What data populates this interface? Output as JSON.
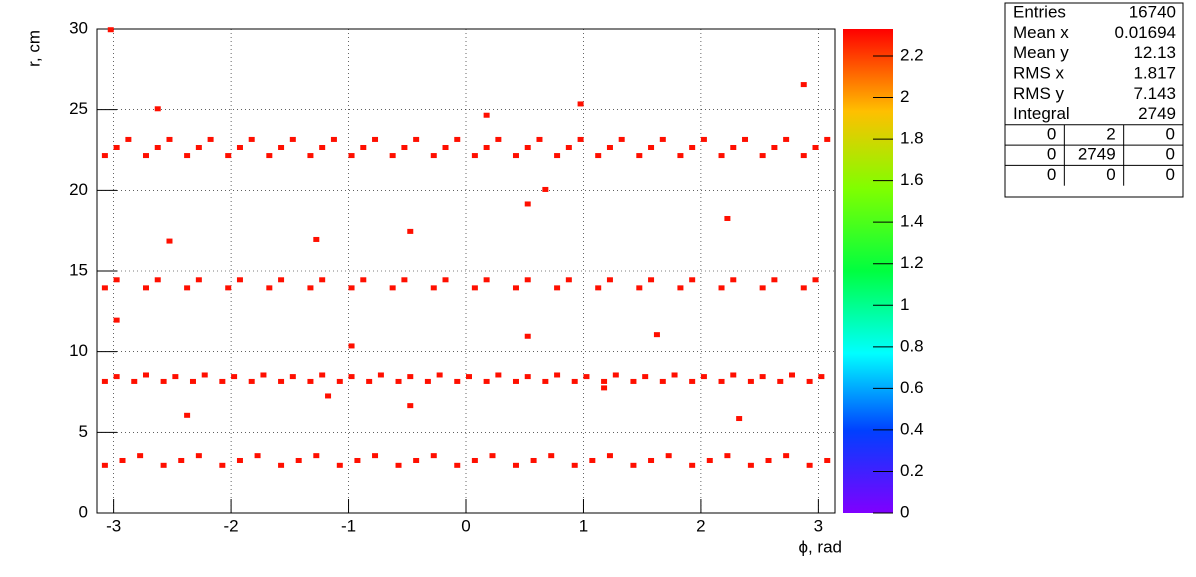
{
  "chart_data": {
    "type": "heatmap",
    "x_label": "ϕ, rad",
    "y_label": "r, cm",
    "xlim": [
      -3.1416,
      3.1416
    ],
    "ylim": [
      0,
      30
    ],
    "zlim": [
      0,
      2.33
    ],
    "xticks": [
      -3,
      -2,
      -1,
      0,
      1,
      2,
      3
    ],
    "yticks": [
      0,
      5,
      10,
      15,
      20,
      25,
      30
    ],
    "zticks": [
      0,
      0.2,
      0.4,
      0.6,
      0.8,
      1,
      1.2,
      1.4,
      1.6,
      1.8,
      2,
      2.2
    ],
    "grid": true,
    "x": [
      -3.1,
      -3.0,
      -2.9,
      -2.75,
      -2.65,
      -2.55,
      -2.4,
      -2.3,
      -2.2,
      -2.05,
      -1.95,
      -1.85,
      -1.7,
      -1.6,
      -1.5,
      -1.35,
      -1.25,
      -1.15,
      -1.0,
      -0.9,
      -0.8,
      -0.65,
      -0.55,
      -0.45,
      -0.3,
      -0.2,
      -0.1,
      0.05,
      0.15,
      0.25,
      0.4,
      0.5,
      0.6,
      0.75,
      0.85,
      0.95,
      1.1,
      1.2,
      1.3,
      1.45,
      1.55,
      1.65,
      1.8,
      1.9,
      2.0,
      2.15,
      2.25,
      2.35,
      2.5,
      2.6,
      2.7,
      2.85,
      2.95,
      3.05,
      -3.1,
      -3.0,
      -2.75,
      -2.65,
      -2.4,
      -2.3,
      -2.05,
      -1.95,
      -1.7,
      -1.6,
      -1.35,
      -1.25,
      -1.0,
      -0.9,
      -0.65,
      -0.55,
      -0.3,
      -0.2,
      0.05,
      0.15,
      0.4,
      0.5,
      0.75,
      0.85,
      1.1,
      1.2,
      1.45,
      1.55,
      1.8,
      1.9,
      2.15,
      2.25,
      2.5,
      2.6,
      2.85,
      2.95,
      -3.1,
      -3.0,
      -2.85,
      -2.75,
      -2.6,
      -2.5,
      -2.35,
      -2.25,
      -2.1,
      -2.0,
      -1.85,
      -1.75,
      -1.6,
      -1.5,
      -1.35,
      -1.25,
      -1.1,
      -1.0,
      -0.85,
      -0.75,
      -0.6,
      -0.5,
      -0.35,
      -0.25,
      -0.1,
      0.0,
      0.15,
      0.25,
      0.4,
      0.5,
      0.65,
      0.75,
      0.9,
      1.0,
      1.15,
      1.25,
      1.4,
      1.5,
      1.65,
      1.75,
      1.9,
      2.0,
      2.15,
      2.25,
      2.4,
      2.5,
      2.65,
      2.75,
      2.9,
      3.0,
      -3.1,
      -2.95,
      -2.8,
      -2.6,
      -2.45,
      -2.3,
      -2.1,
      -1.95,
      -1.8,
      -1.6,
      -1.45,
      -1.3,
      -1.1,
      -0.95,
      -0.8,
      -0.6,
      -0.45,
      -0.3,
      -0.1,
      0.05,
      0.2,
      0.4,
      0.55,
      0.7,
      0.9,
      1.05,
      1.2,
      1.4,
      1.55,
      1.7,
      1.9,
      2.05,
      2.2,
      2.4,
      2.55,
      2.7,
      2.9,
      3.05,
      -3.05,
      -2.65,
      -2.55,
      -1.3,
      0.5,
      0.65,
      2.2,
      -0.5,
      2.85,
      0.95,
      -3.0,
      -1.0,
      0.5,
      1.6,
      -2.4,
      -0.5,
      2.3,
      -1.2,
      0.15,
      1.15
    ],
    "y": [
      22.0,
      22.5,
      23.0,
      22.0,
      22.5,
      23.0,
      22.0,
      22.5,
      23.0,
      22.0,
      22.5,
      23.0,
      22.0,
      22.5,
      23.0,
      22.0,
      22.5,
      23.0,
      22.0,
      22.5,
      23.0,
      22.0,
      22.5,
      23.0,
      22.0,
      22.5,
      23.0,
      22.0,
      22.5,
      23.0,
      22.0,
      22.5,
      23.0,
      22.0,
      22.5,
      23.0,
      22.0,
      22.5,
      23.0,
      22.0,
      22.5,
      23.0,
      22.0,
      22.5,
      23.0,
      22.0,
      22.5,
      23.0,
      22.0,
      22.5,
      23.0,
      22.0,
      22.5,
      23.0,
      13.8,
      14.3,
      13.8,
      14.3,
      13.8,
      14.3,
      13.8,
      14.3,
      13.8,
      14.3,
      13.8,
      14.3,
      13.8,
      14.3,
      13.8,
      14.3,
      13.8,
      14.3,
      13.8,
      14.3,
      13.8,
      14.3,
      13.8,
      14.3,
      13.8,
      14.3,
      13.8,
      14.3,
      13.8,
      14.3,
      13.8,
      14.3,
      13.8,
      14.3,
      13.8,
      14.3,
      8.0,
      8.3,
      8.0,
      8.4,
      8.0,
      8.3,
      8.0,
      8.4,
      8.0,
      8.3,
      8.0,
      8.4,
      8.0,
      8.3,
      8.0,
      8.4,
      8.0,
      8.3,
      8.0,
      8.4,
      8.0,
      8.3,
      8.0,
      8.4,
      8.0,
      8.3,
      8.0,
      8.4,
      8.0,
      8.3,
      8.0,
      8.4,
      8.0,
      8.3,
      8.0,
      8.4,
      8.0,
      8.3,
      8.0,
      8.4,
      8.0,
      8.3,
      8.0,
      8.4,
      8.0,
      8.3,
      8.0,
      8.4,
      8.0,
      8.3,
      2.8,
      3.1,
      3.4,
      2.8,
      3.1,
      3.4,
      2.8,
      3.1,
      3.4,
      2.8,
      3.1,
      3.4,
      2.8,
      3.1,
      3.4,
      2.8,
      3.1,
      3.4,
      2.8,
      3.1,
      3.4,
      2.8,
      3.1,
      3.4,
      2.8,
      3.1,
      3.4,
      2.8,
      3.1,
      3.4,
      2.8,
      3.1,
      3.4,
      2.8,
      3.1,
      3.4,
      2.8,
      3.1,
      29.8,
      24.9,
      16.7,
      16.8,
      19.0,
      19.9,
      18.1,
      17.3,
      26.4,
      25.2,
      11.8,
      10.2,
      10.8,
      10.9,
      5.9,
      6.5,
      5.7,
      7.1,
      24.5,
      7.6
    ],
    "z": [
      2.3,
      2.3,
      2.3,
      2.3,
      2.3,
      2.3,
      2.3,
      2.3,
      2.3,
      2.3,
      2.3,
      2.3,
      2.3,
      2.3,
      2.3,
      2.3,
      2.3,
      2.3,
      2.3,
      2.3,
      2.3,
      2.3,
      2.3,
      2.3,
      2.3,
      2.3,
      2.3,
      2.3,
      2.3,
      2.3,
      2.3,
      2.3,
      2.3,
      2.3,
      2.3,
      2.3,
      2.3,
      2.3,
      2.3,
      2.3,
      2.3,
      2.3,
      2.3,
      2.3,
      2.3,
      2.3,
      2.3,
      2.3,
      2.3,
      2.3,
      2.3,
      2.3,
      2.3,
      2.3,
      2.3,
      2.3,
      2.3,
      2.3,
      2.3,
      2.3,
      2.3,
      2.3,
      2.3,
      2.3,
      2.3,
      2.3,
      2.3,
      2.3,
      2.3,
      2.3,
      2.3,
      2.3,
      2.3,
      2.3,
      2.3,
      2.3,
      2.3,
      2.3,
      2.3,
      2.3,
      2.3,
      2.3,
      2.3,
      2.3,
      2.3,
      2.3,
      2.3,
      2.3,
      2.3,
      2.3,
      2.3,
      2.3,
      2.3,
      2.3,
      2.3,
      2.3,
      2.3,
      2.3,
      2.3,
      2.3,
      2.3,
      2.3,
      2.3,
      2.3,
      2.3,
      2.3,
      2.3,
      2.3,
      2.3,
      2.3,
      2.3,
      2.3,
      2.3,
      2.3,
      2.3,
      2.3,
      2.3,
      2.3,
      2.3,
      2.3,
      2.3,
      2.3,
      2.3,
      2.3,
      2.3,
      2.3,
      2.3,
      2.3,
      2.3,
      2.3,
      2.3,
      2.3,
      2.3,
      2.3,
      2.3,
      2.3,
      2.3,
      2.3,
      2.3,
      2.3,
      2.3,
      2.3,
      2.3,
      2.3,
      2.3,
      2.3,
      2.3,
      2.3,
      2.3,
      2.3,
      2.3,
      2.3,
      2.3,
      2.3,
      2.3,
      2.3,
      2.3,
      2.3,
      2.3,
      2.3,
      2.3,
      2.3,
      2.3,
      2.3,
      2.3,
      2.3,
      2.3,
      2.3,
      2.3,
      2.3,
      2.3,
      2.3,
      2.3,
      2.3,
      2.3,
      2.3,
      2.3,
      2.3,
      2.3,
      2.3,
      2.3,
      2.3,
      2.3,
      2.3,
      2.3,
      2.3,
      2.3,
      2.3,
      2.3,
      2.3,
      2.3,
      2.3,
      2.3,
      2.3,
      2.3,
      2.3,
      2.3,
      2.3
    ]
  },
  "stats": {
    "rows": [
      [
        "Entries",
        16740
      ],
      [
        "Mean x",
        0.01694
      ],
      [
        "Mean y",
        12.13
      ],
      [
        "RMS x",
        1.817
      ],
      [
        "RMS y",
        7.143
      ],
      [
        "Integral",
        2749
      ]
    ],
    "grid": [
      [
        0,
        2,
        0
      ],
      [
        0,
        2749,
        0
      ],
      [
        0,
        0,
        0
      ]
    ]
  }
}
